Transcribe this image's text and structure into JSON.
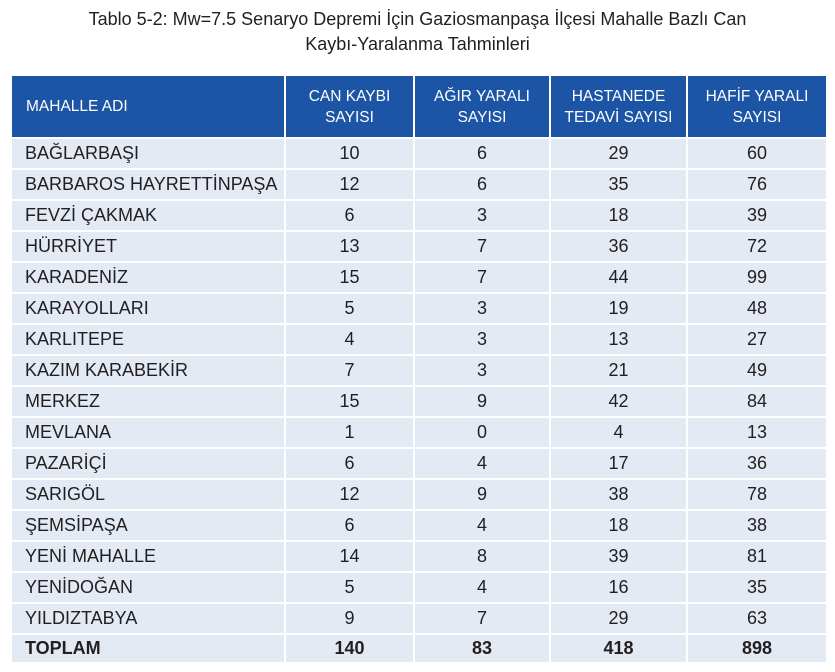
{
  "caption": {
    "line1": "Tablo 5-2: Mw=7.5 Senaryo Depremi İçin Gaziosmanpaşa İlçesi Mahalle Bazlı Can",
    "line2": "Kaybı-Yaralanma Tahminleri"
  },
  "headers": [
    "MAHALLE ADI",
    "CAN KAYBI SAYISI",
    "AĞIR YARALI SAYISI",
    "HASTANEDE TEDAVİ SAYISI",
    "HAFİF YARALI SAYISI"
  ],
  "rows": [
    [
      "BAĞLARBAŞI",
      "10",
      "6",
      "29",
      "60"
    ],
    [
      "BARBAROS HAYRETTİNPAŞA",
      "12",
      "6",
      "35",
      "76"
    ],
    [
      "FEVZİ ÇAKMAK",
      "6",
      "3",
      "18",
      "39"
    ],
    [
      "HÜRRİYET",
      "13",
      "7",
      "36",
      "72"
    ],
    [
      "KARADENİZ",
      "15",
      "7",
      "44",
      "99"
    ],
    [
      "KARAYOLLARI",
      "5",
      "3",
      "19",
      "48"
    ],
    [
      "KARLITEPE",
      "4",
      "3",
      "13",
      "27"
    ],
    [
      "KAZIM KARABEKİR",
      "7",
      "3",
      "21",
      "49"
    ],
    [
      "MERKEZ",
      "15",
      "9",
      "42",
      "84"
    ],
    [
      "MEVLANA",
      "1",
      "0",
      "4",
      "13"
    ],
    [
      "PAZARİÇİ",
      "6",
      "4",
      "17",
      "36"
    ],
    [
      "SARIGÖL",
      "12",
      "9",
      "38",
      "78"
    ],
    [
      "ŞEMSİPAŞA",
      "6",
      "4",
      "18",
      "38"
    ],
    [
      "YENİ MAHALLE",
      "14",
      "8",
      "39",
      "81"
    ],
    [
      "YENİDOĞAN",
      "5",
      "4",
      "16",
      "35"
    ],
    [
      "YILDIZTABYA",
      "9",
      "7",
      "29",
      "63"
    ]
  ],
  "total": [
    "TOPLAM",
    "140",
    "83",
    "418",
    "898"
  ],
  "colors": {
    "header_bg": "#1c55a5",
    "row_bg": "#e3eaf4",
    "text": "#231f20"
  }
}
